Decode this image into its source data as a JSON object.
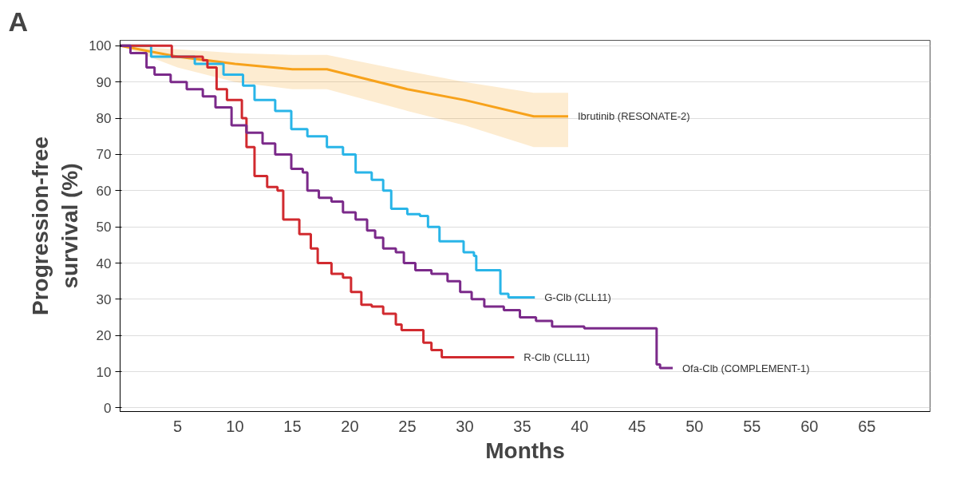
{
  "chart_data": {
    "type": "step",
    "title": "A",
    "xlabel": "Months",
    "ylabel": "Progression-free\nsurvival (%)",
    "xlim": [
      0,
      70.5
    ],
    "ylim": [
      -1,
      101.5
    ],
    "xticks": [
      5,
      10,
      15,
      20,
      25,
      30,
      35,
      40,
      45,
      50,
      55,
      60,
      65
    ],
    "yticks": [
      0,
      10,
      20,
      30,
      40,
      50,
      60,
      70,
      80,
      90,
      100
    ],
    "grid": "y",
    "series": [
      {
        "name": "Ibrutinib (RESONATE-2)",
        "type": "line",
        "color": "#f7a21b",
        "x": [
          0,
          5,
          10,
          15,
          18,
          25,
          30,
          36,
          39
        ],
        "values": [
          100,
          97,
          95,
          93.5,
          93.5,
          88,
          85,
          80.5,
          80.5
        ],
        "lower": [
          100,
          94,
          90,
          88,
          88,
          82,
          78,
          72,
          72
        ],
        "upper": [
          100,
          99,
          98,
          97.5,
          97.5,
          93,
          90,
          87,
          87
        ]
      },
      {
        "name": "G-Clb (CLL11)",
        "color": "#29b5e8",
        "x": [
          0,
          2.7,
          6.5,
          9,
          10.7,
          11.7,
          13.5,
          14.9,
          16.3,
          18,
          19.4,
          20.5,
          21.9,
          22.9,
          23.6,
          25,
          26.1,
          26.8,
          27.8,
          28.9,
          29.9,
          30.8,
          31,
          32.7,
          33.1,
          33.8,
          36.1
        ],
        "values": [
          100,
          97,
          95,
          92,
          89,
          85,
          82,
          77,
          75,
          72,
          70,
          65,
          63,
          60,
          55,
          53.5,
          53,
          50,
          46,
          46,
          43,
          42,
          38,
          38,
          31.5,
          30.5,
          30.5
        ]
      },
      {
        "name": "R-Clb (CLL11)",
        "color": "#d12a2f",
        "x": [
          0,
          4.5,
          7.2,
          7.6,
          8.4,
          9.3,
          10.6,
          11,
          11.7,
          12.8,
          13.7,
          14.2,
          15.6,
          16.6,
          17.2,
          18.4,
          19.4,
          20.1,
          21,
          21.9,
          22.9,
          24,
          24.5,
          25.7,
          26.4,
          27.1,
          28,
          34.3
        ],
        "values": [
          100,
          97,
          96,
          94,
          88,
          85,
          80,
          72,
          64,
          61,
          60,
          52,
          48,
          44,
          40,
          37,
          36,
          32,
          28.5,
          28,
          26,
          23,
          21.5,
          21.5,
          18,
          16,
          14,
          14
        ]
      },
      {
        "name": "Ofa-Clb (COMPLEMENT-1)",
        "color": "#7b2a8a",
        "x": [
          0,
          0.9,
          2.3,
          3,
          4.4,
          5.8,
          7.2,
          8.3,
          9.7,
          11,
          12.4,
          13.5,
          14.9,
          15.9,
          16.3,
          17.3,
          18.4,
          19.4,
          20.5,
          21.5,
          22.2,
          22.9,
          24,
          24.7,
          25.7,
          27.1,
          28.5,
          29.6,
          30.6,
          31.7,
          33.4,
          34.8,
          36.2,
          37.6,
          40.4,
          43.2,
          46.6,
          46.7,
          47,
          48.1
        ],
        "values": [
          100,
          98,
          94,
          92,
          90,
          88,
          86,
          83,
          78,
          76,
          73,
          70,
          66,
          65,
          60,
          58,
          57,
          54,
          52,
          49,
          47,
          44,
          43,
          40,
          38,
          37,
          35,
          32,
          30,
          28,
          27,
          25,
          24,
          22.5,
          22,
          22,
          22,
          12,
          11,
          11
        ]
      }
    ]
  }
}
